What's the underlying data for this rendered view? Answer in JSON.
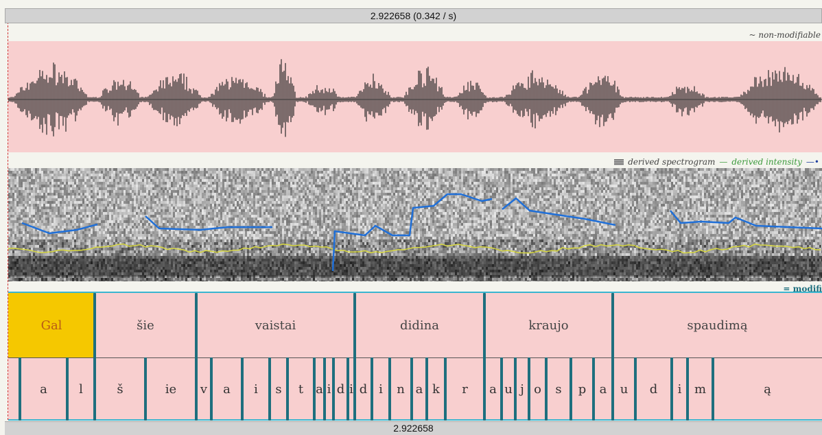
{
  "time_display": "2.922658 (0.342 / s)",
  "bottom_time": "2.922658",
  "legends": {
    "waveform": "~ non-modifiable",
    "spectrogram": "derived spectrogram",
    "intensity": "derived intensity",
    "tier": "= modifi"
  },
  "words": [
    {
      "text": "Gal",
      "selected": true
    },
    {
      "text": "šie"
    },
    {
      "text": "vaistai"
    },
    {
      "text": "didina"
    },
    {
      "text": "kraujo"
    },
    {
      "text": "spaudimą"
    }
  ],
  "phones": [
    "a",
    "l",
    "š",
    "ie",
    "v",
    "a",
    "i",
    "s",
    "t",
    "a",
    "i",
    "d",
    "i",
    "d",
    "i",
    "n",
    "a",
    "k",
    "r",
    "a",
    "u",
    "j",
    "o",
    "s",
    "p",
    "a",
    "u",
    "d",
    "i",
    "m",
    "ą"
  ],
  "colors": {
    "tier_bg": "#f8cfcf",
    "selected_word": "#f5c800",
    "boundary": "#1e6f7e",
    "pitch": "#1f6fd8",
    "intensity": "#d8d840"
  }
}
